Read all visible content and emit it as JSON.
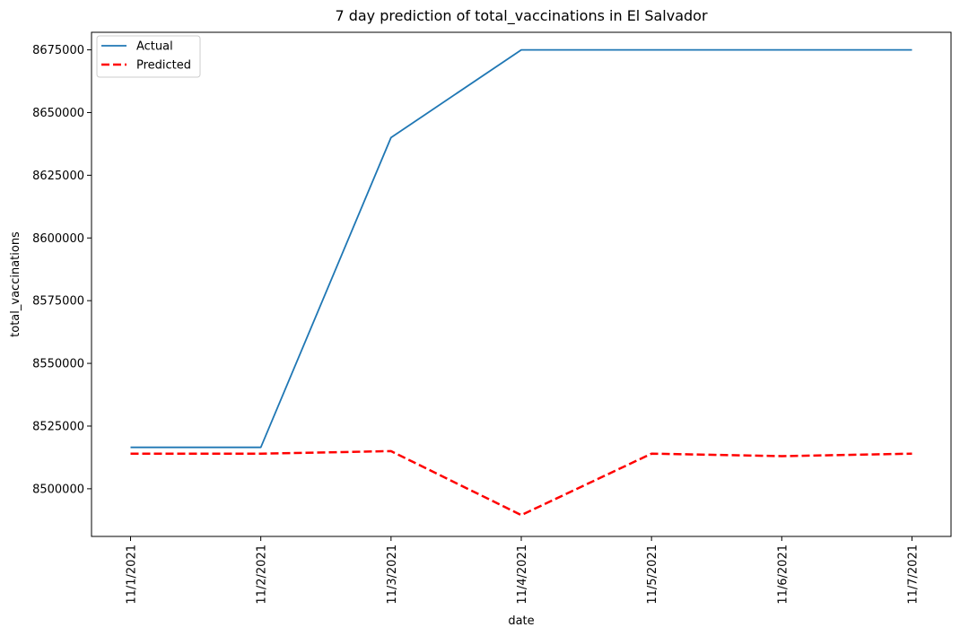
{
  "chart_data": {
    "type": "line",
    "title": "7 day prediction of total_vaccinations in El Salvador",
    "xlabel": "date",
    "ylabel": "total_vaccinations",
    "categories": [
      "11/1/2021",
      "11/2/2021",
      "11/3/2021",
      "11/4/2021",
      "11/5/2021",
      "11/6/2021",
      "11/7/2021"
    ],
    "series": [
      {
        "name": "Actual",
        "color": "#1f77b4",
        "style": "solid",
        "values": [
          8516500,
          8516500,
          8640000,
          8675000,
          8675000,
          8675000,
          8675000
        ]
      },
      {
        "name": "Predicted",
        "color": "#ff0000",
        "style": "dashed",
        "values": [
          8514000,
          8514000,
          8515000,
          8489500,
          8514000,
          8513000,
          8514000
        ]
      }
    ],
    "yticks": [
      8500000,
      8525000,
      8550000,
      8575000,
      8600000,
      8625000,
      8650000,
      8675000
    ],
    "ylim": [
      8481000,
      8682000
    ],
    "grid": false,
    "legend_position": "upper-left"
  }
}
